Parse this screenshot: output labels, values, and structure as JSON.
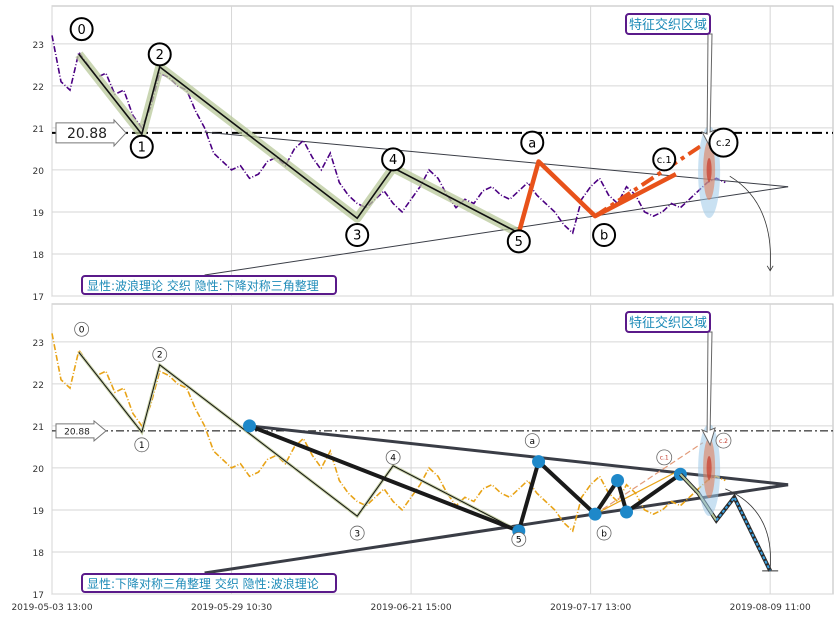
{
  "chart_data": [
    {
      "type": "line",
      "panel": "top",
      "title": "",
      "ylim": [
        17,
        23.9
      ],
      "y_ticks": [
        17,
        18,
        19,
        20,
        21,
        22,
        23
      ],
      "grid": true,
      "reference_line": {
        "value": 20.88,
        "label": "20.88"
      },
      "price_series": {
        "color": "#4b0082",
        "points": [
          [
            0,
            23.2
          ],
          [
            1,
            22.1
          ],
          [
            2,
            21.9
          ],
          [
            3,
            22.8
          ],
          [
            4,
            22.5
          ],
          [
            5,
            22.2
          ],
          [
            6,
            22.3
          ],
          [
            7,
            21.8
          ],
          [
            8,
            21.9
          ],
          [
            9,
            21.3
          ],
          [
            10,
            21.0
          ],
          [
            11,
            21.5
          ],
          [
            12,
            22.3
          ],
          [
            13,
            22.2
          ],
          [
            14,
            22.0
          ],
          [
            15,
            21.9
          ],
          [
            16,
            21.4
          ],
          [
            17,
            21.0
          ],
          [
            18,
            20.4
          ],
          [
            19,
            20.2
          ],
          [
            20,
            20.0
          ],
          [
            21,
            20.1
          ],
          [
            22,
            19.8
          ],
          [
            23,
            19.9
          ],
          [
            24,
            20.2
          ],
          [
            25,
            20.3
          ],
          [
            26,
            20.1
          ],
          [
            27,
            20.5
          ],
          [
            28,
            20.7
          ],
          [
            29,
            20.3
          ],
          [
            30,
            20.0
          ],
          [
            31,
            20.4
          ],
          [
            32,
            19.7
          ],
          [
            33,
            19.4
          ],
          [
            34,
            19.2
          ],
          [
            35,
            19.1
          ],
          [
            36,
            19.3
          ],
          [
            37,
            19.5
          ],
          [
            38,
            19.2
          ],
          [
            39,
            19.0
          ],
          [
            40,
            19.3
          ],
          [
            41,
            19.6
          ],
          [
            42,
            20.0
          ],
          [
            43,
            19.8
          ],
          [
            44,
            19.4
          ],
          [
            45,
            19.1
          ],
          [
            46,
            19.3
          ],
          [
            47,
            19.2
          ],
          [
            48,
            19.5
          ],
          [
            49,
            19.6
          ],
          [
            50,
            19.4
          ],
          [
            51,
            19.3
          ],
          [
            52,
            19.5
          ],
          [
            53,
            19.7
          ],
          [
            54,
            19.4
          ],
          [
            55,
            19.2
          ],
          [
            56,
            19.0
          ],
          [
            57,
            18.7
          ],
          [
            58,
            18.5
          ],
          [
            59,
            19.3
          ],
          [
            60,
            19.6
          ],
          [
            61,
            19.8
          ],
          [
            62,
            19.4
          ],
          [
            63,
            19.2
          ],
          [
            64,
            19.6
          ],
          [
            65,
            19.4
          ],
          [
            66,
            19.0
          ],
          [
            67,
            18.9
          ],
          [
            68,
            19.0
          ],
          [
            69,
            19.2
          ],
          [
            70,
            19.1
          ],
          [
            71,
            19.3
          ],
          [
            72,
            19.5
          ],
          [
            73,
            19.7
          ],
          [
            74,
            19.8
          ],
          [
            75,
            19.7
          ]
        ]
      },
      "wave_points": [
        {
          "label": "0",
          "x": 3,
          "y": 22.75,
          "lx": 3.3,
          "ly": 23.35
        },
        {
          "label": "1",
          "x": 10,
          "y": 20.85,
          "lx": 10.0,
          "ly": 20.55
        },
        {
          "label": "2",
          "x": 12,
          "y": 22.45,
          "lx": 12.0,
          "ly": 22.75
        },
        {
          "label": "3",
          "x": 34,
          "y": 18.85,
          "lx": 34.0,
          "ly": 18.45
        },
        {
          "label": "4",
          "x": 38,
          "y": 20.05,
          "lx": 38.0,
          "ly": 20.25
        },
        {
          "label": "5",
          "x": 52,
          "y": 18.5,
          "lx": 52.0,
          "ly": 18.3
        }
      ],
      "abc_points": [
        {
          "label": "a",
          "x": 54.2,
          "y": 20.2,
          "lx": 53.5,
          "ly": 20.65
        },
        {
          "label": "b",
          "x": 60.5,
          "y": 18.9,
          "lx": 61.5,
          "ly": 18.45
        },
        {
          "label": "c.1",
          "x": 69.5,
          "y": 19.9,
          "lx": 68.2,
          "ly": 20.25
        },
        {
          "label": "c.2",
          "x": 72.5,
          "y": 20.6,
          "lx": 74.8,
          "ly": 20.65
        }
      ],
      "triangle": {
        "upper": [
          [
            17,
            20.9
          ],
          [
            82,
            19.6
          ]
        ],
        "lower": [
          [
            17,
            17.5
          ],
          [
            82,
            19.6
          ]
        ]
      },
      "annotation": "特征交织区域",
      "caption": "显性:波浪理论 交织 隐性:下降对称三角整理"
    },
    {
      "type": "line",
      "panel": "bottom",
      "title": "",
      "ylim": [
        17,
        23.9
      ],
      "y_ticks": [
        17,
        18,
        19,
        20,
        21,
        22,
        23
      ],
      "grid": true,
      "x_ticks": [
        "2019-05-03 13:00",
        "2019-05-29 10:30",
        "2019-06-21 15:00",
        "2019-07-17 13:00",
        "2019-08-09 11:00"
      ],
      "reference_line": {
        "value": 20.88,
        "label": "20.88"
      },
      "price_series": {
        "color": "#e8a317",
        "points": [
          [
            0,
            23.2
          ],
          [
            1,
            22.1
          ],
          [
            2,
            21.9
          ],
          [
            3,
            22.8
          ],
          [
            4,
            22.5
          ],
          [
            5,
            22.2
          ],
          [
            6,
            22.3
          ],
          [
            7,
            21.8
          ],
          [
            8,
            21.9
          ],
          [
            9,
            21.3
          ],
          [
            10,
            21.0
          ],
          [
            11,
            21.5
          ],
          [
            12,
            22.3
          ],
          [
            13,
            22.2
          ],
          [
            14,
            22.0
          ],
          [
            15,
            21.9
          ],
          [
            16,
            21.4
          ],
          [
            17,
            21.0
          ],
          [
            18,
            20.4
          ],
          [
            19,
            20.2
          ],
          [
            20,
            20.0
          ],
          [
            21,
            20.1
          ],
          [
            22,
            19.8
          ],
          [
            23,
            19.9
          ],
          [
            24,
            20.2
          ],
          [
            25,
            20.3
          ],
          [
            26,
            20.1
          ],
          [
            27,
            20.5
          ],
          [
            28,
            20.7
          ],
          [
            29,
            20.3
          ],
          [
            30,
            20.0
          ],
          [
            31,
            20.4
          ],
          [
            32,
            19.7
          ],
          [
            33,
            19.4
          ],
          [
            34,
            19.2
          ],
          [
            35,
            19.1
          ],
          [
            36,
            19.3
          ],
          [
            37,
            19.5
          ],
          [
            38,
            19.2
          ],
          [
            39,
            19.0
          ],
          [
            40,
            19.3
          ],
          [
            41,
            19.6
          ],
          [
            42,
            20.0
          ],
          [
            43,
            19.8
          ],
          [
            44,
            19.4
          ],
          [
            45,
            19.1
          ],
          [
            46,
            19.3
          ],
          [
            47,
            19.2
          ],
          [
            48,
            19.5
          ],
          [
            49,
            19.6
          ],
          [
            50,
            19.4
          ],
          [
            51,
            19.3
          ],
          [
            52,
            19.5
          ],
          [
            53,
            19.7
          ],
          [
            54,
            19.4
          ],
          [
            55,
            19.2
          ],
          [
            56,
            19.0
          ],
          [
            57,
            18.7
          ],
          [
            58,
            18.5
          ],
          [
            59,
            19.3
          ],
          [
            60,
            19.6
          ],
          [
            61,
            19.8
          ],
          [
            62,
            19.4
          ],
          [
            63,
            19.2
          ],
          [
            64,
            19.6
          ],
          [
            65,
            19.4
          ],
          [
            66,
            19.0
          ],
          [
            67,
            18.9
          ],
          [
            68,
            19.0
          ],
          [
            69,
            19.2
          ],
          [
            70,
            19.1
          ],
          [
            71,
            19.3
          ],
          [
            72,
            19.5
          ],
          [
            73,
            19.7
          ],
          [
            74,
            19.8
          ],
          [
            75,
            19.7
          ]
        ]
      },
      "wave_points": [
        {
          "label": "0",
          "x": 3,
          "y": 22.75,
          "lx": 3.3,
          "ly": 23.3
        },
        {
          "label": "1",
          "x": 10,
          "y": 20.85,
          "lx": 10.0,
          "ly": 20.55
        },
        {
          "label": "2",
          "x": 12,
          "y": 22.45,
          "lx": 12.0,
          "ly": 22.7
        },
        {
          "label": "3",
          "x": 34,
          "y": 18.85,
          "lx": 34.0,
          "ly": 18.45
        },
        {
          "label": "4",
          "x": 38,
          "y": 20.05,
          "lx": 38.0,
          "ly": 20.25
        },
        {
          "label": "5",
          "x": 52,
          "y": 18.5,
          "lx": 52.0,
          "ly": 18.3
        }
      ],
      "abc_points": [
        {
          "label": "a",
          "x": 54.2,
          "y": 20.2,
          "lx": 53.5,
          "ly": 20.65
        },
        {
          "label": "b",
          "x": 60.5,
          "y": 18.9,
          "lx": 61.5,
          "ly": 18.45
        },
        {
          "label": "c.1",
          "x": 69.5,
          "y": 19.9,
          "lx": 68.2,
          "ly": 20.25
        },
        {
          "label": "c.2",
          "x": 72.5,
          "y": 20.6,
          "lx": 74.8,
          "ly": 20.65
        }
      ],
      "pattern_points": [
        [
          22,
          21.0
        ],
        [
          52,
          18.5
        ],
        [
          54.2,
          20.15
        ],
        [
          60.5,
          18.9
        ],
        [
          63,
          19.7
        ],
        [
          64,
          18.95
        ],
        [
          70,
          19.85
        ]
      ],
      "triangle": {
        "upper": [
          [
            22,
            21.0
          ],
          [
            82,
            19.6
          ]
        ],
        "lower": [
          [
            17,
            17.5
          ],
          [
            82,
            19.6
          ]
        ]
      },
      "projection": [
        [
          70,
          19.85
        ],
        [
          72,
          19.4
        ],
        [
          74,
          18.75
        ],
        [
          76,
          19.3
        ],
        [
          80,
          17.55
        ]
      ],
      "annotation": "特征交织区域",
      "caption": "显性:下降对称三角整理 交织 隐性:波浪理论"
    }
  ]
}
